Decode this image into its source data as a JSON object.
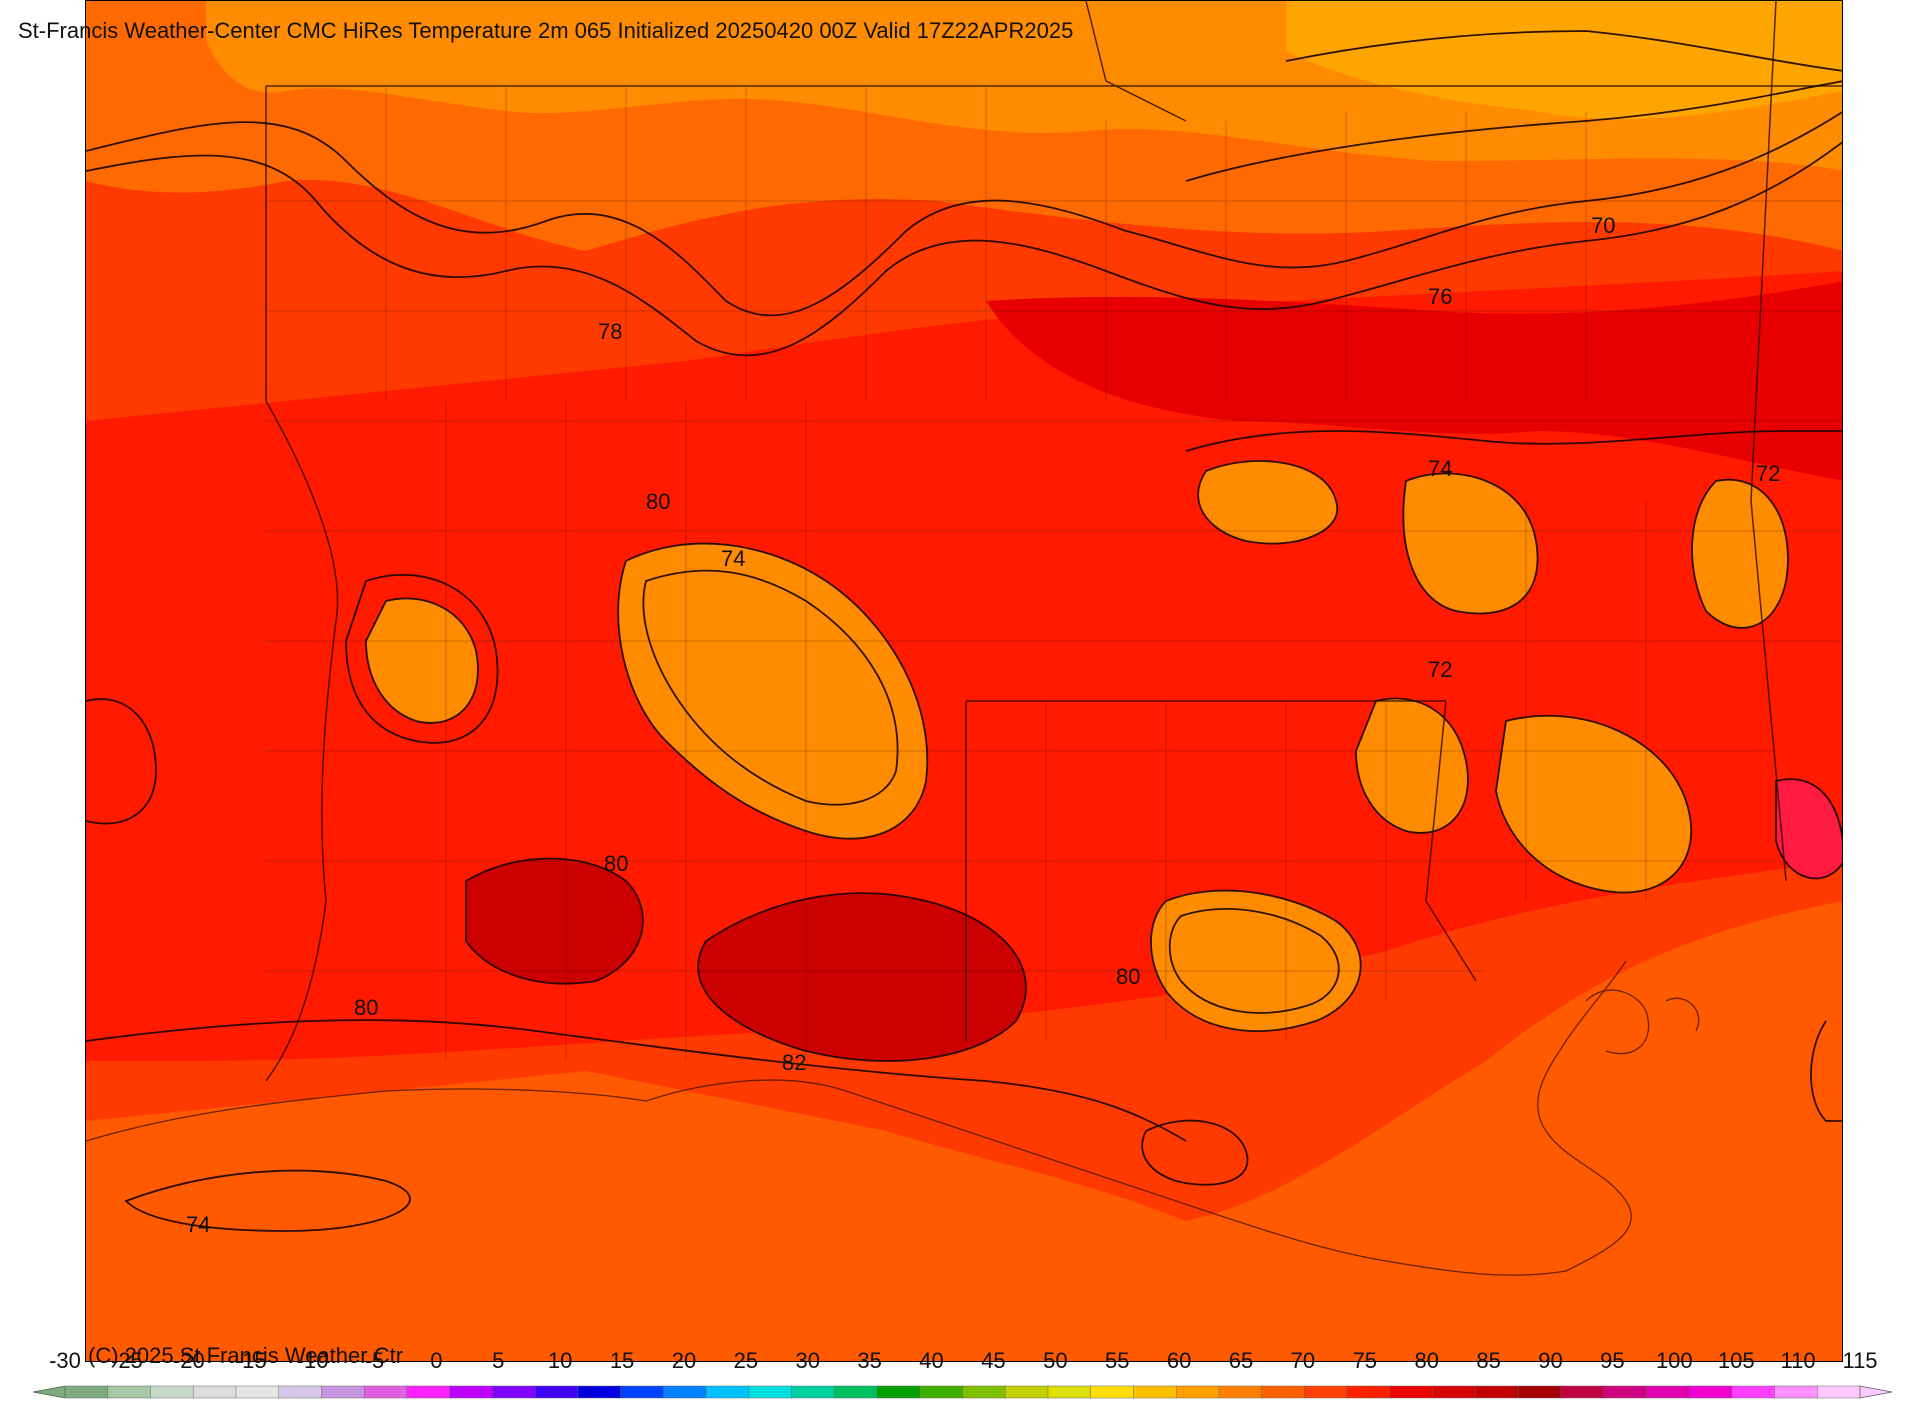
{
  "title": "St-Francis Weather-Center CMC HiRes Temperature 2m  065 Initialized 20250420 00Z Valid 17Z22APR2025",
  "copyright": "(C) 2025 St Francis Weather Ctr",
  "colorbar": {
    "tick_labels": [
      "-30",
      "-25",
      "-20",
      "-15",
      "-10",
      "-5",
      "0",
      "5",
      "10",
      "15",
      "20",
      "25",
      "30",
      "35",
      "40",
      "45",
      "50",
      "55",
      "60",
      "65",
      "70",
      "75",
      "80",
      "85",
      "90",
      "95",
      "100",
      "105",
      "110",
      "115"
    ],
    "colors": [
      "#7fa97f",
      "#a8c6a8",
      "#c8d8c8",
      "#dcdcdc",
      "#e6e6e6",
      "#d8c8e8",
      "#c896e0",
      "#e060e0",
      "#ff20ff",
      "#c000ff",
      "#8000ff",
      "#4000ff",
      "#0000e0",
      "#0040ff",
      "#0080ff",
      "#00c0ff",
      "#00e0e0",
      "#00d0a0",
      "#00c060",
      "#00a000",
      "#40b000",
      "#80c000",
      "#c0d000",
      "#e0e000",
      "#ffe000",
      "#ffc000",
      "#ffa000",
      "#ff8000",
      "#ff6000",
      "#ff4000",
      "#ff2000",
      "#ee0000",
      "#d80000",
      "#c00000",
      "#a80000",
      "#c00040",
      "#d00080",
      "#e000b0",
      "#f000d0",
      "#ff40ff",
      "#ff90ff",
      "#ffc8ff"
    ]
  },
  "contour_labels": [
    {
      "text": "70"
    },
    {
      "text": "76"
    },
    {
      "text": "78"
    },
    {
      "text": "74"
    },
    {
      "text": "72"
    },
    {
      "text": "80"
    },
    {
      "text": "74"
    },
    {
      "text": "72"
    },
    {
      "text": "80"
    },
    {
      "text": "80"
    },
    {
      "text": "80"
    },
    {
      "text": "82"
    },
    {
      "text": "74"
    }
  ],
  "fill_colors": {
    "gulf": "#ff5a00",
    "t70": "#ffa500",
    "t72": "#ff8c00",
    "t75": "#ff6a00",
    "t78": "#ff3a00",
    "t80": "#ff1a00",
    "t82": "#e80000",
    "t84": "#cc0000"
  }
}
